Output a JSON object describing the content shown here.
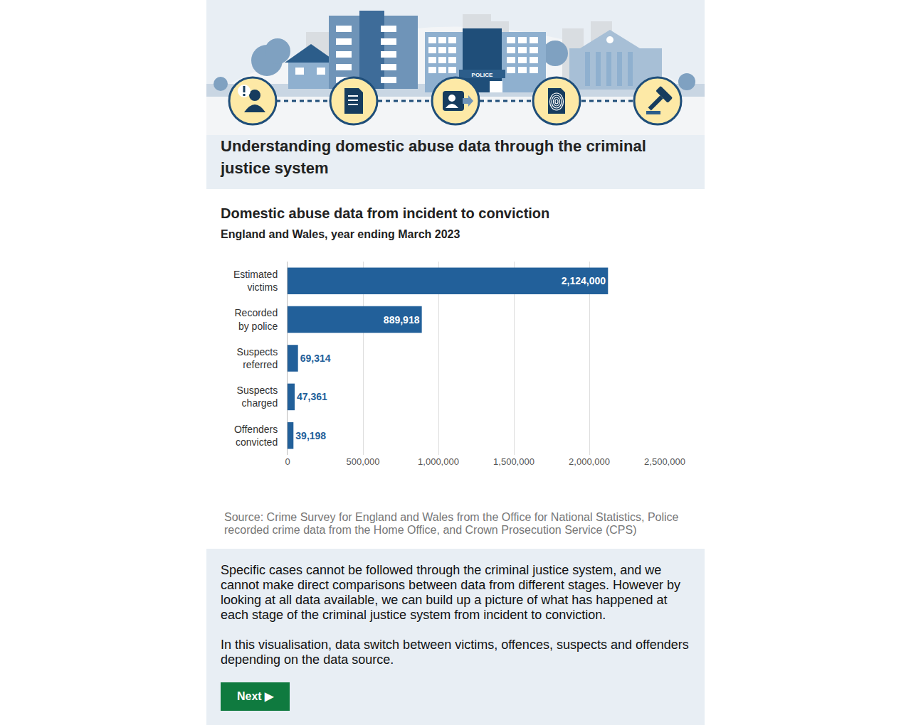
{
  "header": {
    "title": "Understanding domestic abuse data through the criminal justice system",
    "police_sign": "POLICE"
  },
  "chart_data": {
    "type": "bar",
    "orientation": "horizontal",
    "title": "Domestic abuse data from incident to conviction",
    "subtitle": "England and Wales, year ending March 2023",
    "categories": [
      "Estimated victims",
      "Recorded by police",
      "Suspects referred",
      "Suspects charged",
      "Offenders convicted"
    ],
    "values": [
      2124000,
      889918,
      69314,
      47361,
      39198
    ],
    "value_labels": [
      "2,124,000",
      "889,918",
      "69,314",
      "47,361",
      "39,198"
    ],
    "data_labels": true,
    "color": "#22609a",
    "xlim": [
      0,
      2500000
    ],
    "xticks": [
      0,
      {
        "value": 500000,
        "label": "500,000"
      },
      {
        "value": 1000000,
        "label": "1,000,000"
      },
      {
        "value": 1500000,
        "label": "1,500,000"
      },
      {
        "value": 2000000,
        "label": "2,000,000"
      },
      {
        "value": 2500000,
        "label": "2,500,000"
      }
    ],
    "grid": true
  },
  "source": "Source: Crime Survey for England and Wales from the Office for National Statistics, Police recorded crime data from the Home Office, and Crown Prosecution Service (CPS)",
  "notes": [
    "Specific cases cannot be followed through the criminal justice system, and we cannot make direct comparisons between data from different stages. However by looking at all data available, we can build up a picture of what has happened at each stage of the criminal justice system from incident to conviction.",
    "In this visualisation, data switch between victims, offences, suspects and offenders depending on the data source."
  ],
  "button": "Next ▶"
}
